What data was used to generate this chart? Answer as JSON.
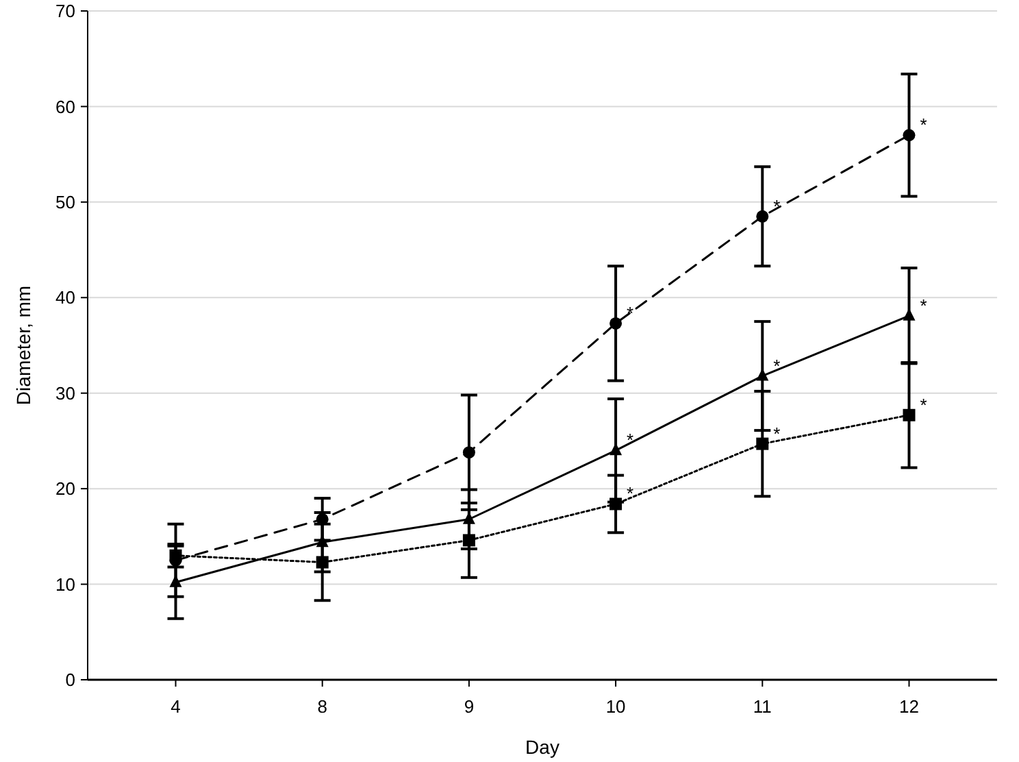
{
  "chart_data": {
    "type": "line",
    "xlabel": "Day",
    "ylabel": "Diameter, mm",
    "categories": [
      "4",
      "8",
      "9",
      "10",
      "11",
      "12"
    ],
    "ylim": [
      0,
      70
    ],
    "yticks": [
      0,
      10,
      20,
      30,
      40,
      50,
      60,
      70
    ],
    "grid": "y",
    "series": [
      {
        "color": "#000000",
        "marker": "circle",
        "line_style": "dashed",
        "values": [
          12.5,
          16.8,
          23.8,
          37.3,
          48.5,
          57.0
        ],
        "errors": [
          3.8,
          2.2,
          6.0,
          6.0,
          5.2,
          6.4
        ]
      },
      {
        "color": "#000000",
        "marker": "triangle",
        "line_style": "solid",
        "values": [
          10.2,
          14.4,
          16.8,
          24.0,
          31.8,
          38.1
        ],
        "errors": [
          3.8,
          3.1,
          3.1,
          5.4,
          5.7,
          5.0
        ]
      },
      {
        "color": "#000000",
        "marker": "square",
        "line_style": "dotted",
        "values": [
          13.0,
          12.3,
          14.6,
          18.4,
          24.7,
          27.7
        ],
        "errors": [
          1.2,
          4.0,
          3.9,
          3.0,
          5.5,
          5.5
        ]
      }
    ],
    "annotations": [
      {
        "text": "*",
        "x": "10",
        "y": 37.3
      },
      {
        "text": "*",
        "x": "11",
        "y": 48.5
      },
      {
        "text": "*",
        "x": "12",
        "y": 57.0
      },
      {
        "text": "*",
        "x": "10",
        "y": 24.0
      },
      {
        "text": "*",
        "x": "11",
        "y": 31.8
      },
      {
        "text": "*",
        "x": "12",
        "y": 38.1
      },
      {
        "text": "*",
        "x": "10",
        "y": 18.4
      },
      {
        "text": "*",
        "x": "11",
        "y": 24.7
      },
      {
        "text": "*",
        "x": "12",
        "y": 27.7
      }
    ]
  }
}
